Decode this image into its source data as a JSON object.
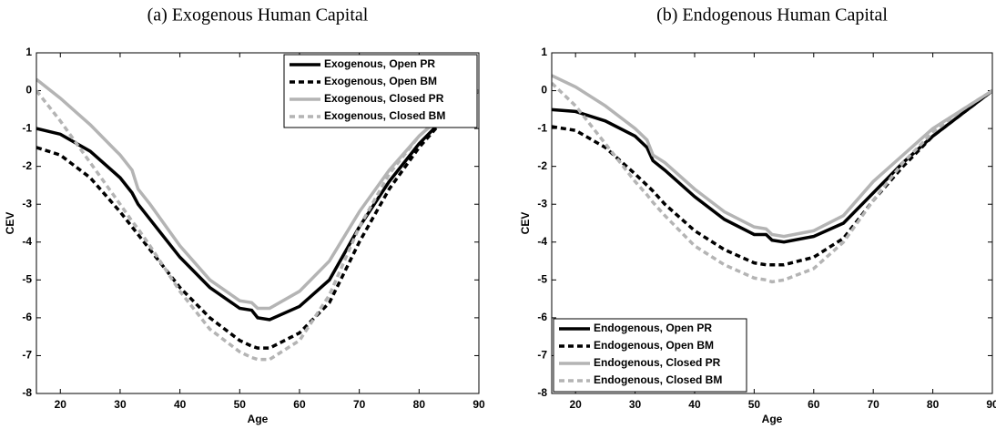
{
  "chart_data": [
    {
      "type": "line",
      "title": "(a) Exogenous Human Capital",
      "x_label": "Age",
      "y_label": "CEV",
      "xlim": [
        16,
        90
      ],
      "ylim": [
        -8,
        1
      ],
      "xticks": [
        20,
        30,
        40,
        50,
        60,
        70,
        80,
        90
      ],
      "yticks": [
        -8,
        -7,
        -6,
        -5,
        -4,
        -3,
        -2,
        -1,
        0,
        1
      ],
      "legend": "upper right",
      "x": [
        16,
        20,
        25,
        30,
        32,
        33,
        35,
        40,
        45,
        50,
        52,
        53,
        55,
        60,
        65,
        70,
        75,
        80,
        85,
        90
      ],
      "series": [
        {
          "name": "Exogenous, Open PR",
          "color": "#000000",
          "linestyle": "solid",
          "values": [
            -1.0,
            -1.15,
            -1.6,
            -2.3,
            -2.7,
            -3.0,
            -3.4,
            -4.4,
            -5.2,
            -5.75,
            -5.8,
            -6.0,
            -6.05,
            -5.7,
            -5.0,
            -3.6,
            -2.4,
            -1.4,
            -0.6,
            0
          ]
        },
        {
          "name": "Exogenous, Open BM",
          "color": "#000000",
          "linestyle": "dashed",
          "values": [
            -1.5,
            -1.7,
            -2.3,
            -3.2,
            -3.6,
            -3.8,
            -4.2,
            -5.2,
            -6.0,
            -6.6,
            -6.75,
            -6.8,
            -6.8,
            -6.4,
            -5.6,
            -4.0,
            -2.6,
            -1.5,
            -0.6,
            0
          ]
        },
        {
          "name": "Exogenous, Closed PR",
          "color": "#b4b4b4",
          "linestyle": "solid",
          "values": [
            0.3,
            -0.2,
            -0.9,
            -1.7,
            -2.1,
            -2.6,
            -3.0,
            -4.1,
            -5.0,
            -5.55,
            -5.6,
            -5.75,
            -5.75,
            -5.3,
            -4.5,
            -3.2,
            -2.1,
            -1.2,
            -0.5,
            0
          ]
        },
        {
          "name": "Exogenous, Closed BM",
          "color": "#b4b4b4",
          "linestyle": "dashed",
          "values": [
            0.0,
            -0.8,
            -1.9,
            -3.0,
            -3.45,
            -3.65,
            -4.1,
            -5.3,
            -6.3,
            -6.9,
            -7.05,
            -7.1,
            -7.1,
            -6.6,
            -5.4,
            -3.6,
            -2.2,
            -1.2,
            -0.5,
            0
          ]
        }
      ]
    },
    {
      "type": "line",
      "title": "(b) Endogenous Human Capital",
      "x_label": "Age",
      "y_label": "CEV",
      "xlim": [
        16,
        90
      ],
      "ylim": [
        -8,
        1
      ],
      "xticks": [
        20,
        30,
        40,
        50,
        60,
        70,
        80,
        90
      ],
      "yticks": [
        -8,
        -7,
        -6,
        -5,
        -4,
        -3,
        -2,
        -1,
        0,
        1
      ],
      "legend": "lower left",
      "x": [
        16,
        20,
        25,
        30,
        32,
        33,
        35,
        40,
        45,
        50,
        52,
        53,
        55,
        60,
        65,
        70,
        75,
        80,
        85,
        90
      ],
      "series": [
        {
          "name": "Endogenous, Open PR",
          "color": "#000000",
          "linestyle": "solid",
          "values": [
            -0.5,
            -0.55,
            -0.8,
            -1.2,
            -1.5,
            -1.85,
            -2.1,
            -2.8,
            -3.4,
            -3.8,
            -3.8,
            -3.95,
            -4.0,
            -3.85,
            -3.5,
            -2.7,
            -1.9,
            -1.2,
            -0.6,
            0
          ]
        },
        {
          "name": "Endogenous, Open BM",
          "color": "#000000",
          "linestyle": "dashed",
          "values": [
            -0.95,
            -1.05,
            -1.5,
            -2.2,
            -2.5,
            -2.65,
            -3.0,
            -3.7,
            -4.2,
            -4.55,
            -4.6,
            -4.6,
            -4.6,
            -4.4,
            -3.9,
            -2.9,
            -2.0,
            -1.2,
            -0.6,
            0
          ]
        },
        {
          "name": "Endogenous, Closed PR",
          "color": "#b4b4b4",
          "linestyle": "solid",
          "values": [
            0.4,
            0.1,
            -0.4,
            -1.0,
            -1.3,
            -1.7,
            -1.9,
            -2.6,
            -3.2,
            -3.6,
            -3.65,
            -3.8,
            -3.85,
            -3.7,
            -3.3,
            -2.4,
            -1.7,
            -1.0,
            -0.5,
            0
          ]
        },
        {
          "name": "Endogenous, Closed BM",
          "color": "#b4b4b4",
          "linestyle": "dashed",
          "values": [
            0.2,
            -0.4,
            -1.4,
            -2.4,
            -2.75,
            -2.95,
            -3.3,
            -4.1,
            -4.6,
            -4.95,
            -5.0,
            -5.05,
            -5.0,
            -4.7,
            -4.0,
            -2.9,
            -1.9,
            -1.1,
            -0.5,
            0
          ]
        }
      ]
    }
  ]
}
